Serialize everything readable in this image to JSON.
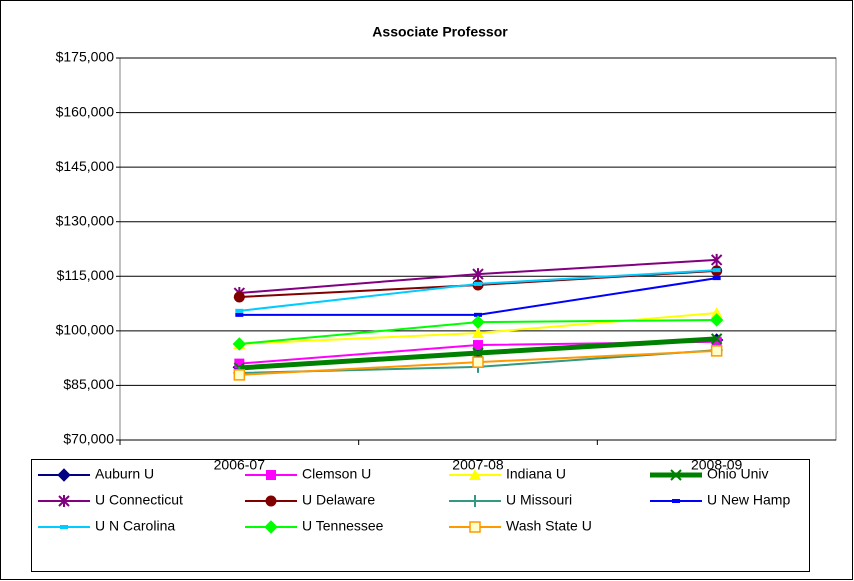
{
  "chart_data": {
    "type": "line",
    "title": "Associate Professor",
    "categories": [
      "2006-07",
      "2007-08",
      "2008-09"
    ],
    "ylim": [
      70000,
      175000
    ],
    "yticks": [
      {
        "value": 70000,
        "label": "$70,000"
      },
      {
        "value": 85000,
        "label": "$85,000"
      },
      {
        "value": 100000,
        "label": "$100,000"
      },
      {
        "value": 115000,
        "label": "$115,000"
      },
      {
        "value": 130000,
        "label": "$130,000"
      },
      {
        "value": 145000,
        "label": "$145,000"
      },
      {
        "value": 160000,
        "label": "$160,000"
      },
      {
        "value": 175000,
        "label": "$175,000"
      }
    ],
    "grid": true,
    "legend": "bottom",
    "series": [
      {
        "name": "Auburn U",
        "color": "#000080",
        "marker": "diamond",
        "values": [
          90000,
          94000,
          97500
        ]
      },
      {
        "name": "Clemson U",
        "color": "#ff00ff",
        "marker": "square",
        "values": [
          91000,
          96100,
          97000
        ]
      },
      {
        "name": "Indiana U",
        "color": "#ffff00",
        "marker": "triangle",
        "values": [
          96400,
          99400,
          104900
        ]
      },
      {
        "name": "Ohio Univ",
        "color": "#008000",
        "marker": "x",
        "width": 5,
        "values": [
          89800,
          93900,
          97800
        ]
      },
      {
        "name": "U Connecticut",
        "color": "#800080",
        "marker": "star",
        "values": [
          110400,
          115600,
          119500
        ]
      },
      {
        "name": "U Delaware",
        "color": "#800000",
        "marker": "circle",
        "values": [
          109300,
          112600,
          116500
        ]
      },
      {
        "name": "U Missouri",
        "color": "#339980",
        "marker": "plus",
        "values": [
          88400,
          90100,
          94700
        ]
      },
      {
        "name": "U New Hamp",
        "color": "#0000ff",
        "marker": "dash",
        "values": [
          104400,
          104400,
          114500
        ]
      },
      {
        "name": "U N Carolina",
        "color": "#00ccff",
        "marker": "dash",
        "values": [
          105500,
          112900,
          116700
        ]
      },
      {
        "name": "U Tennessee",
        "color": "#00ff00",
        "marker": "diamond",
        "values": [
          96400,
          102400,
          103000
        ]
      },
      {
        "name": "Wash State U",
        "color": "#ff9900",
        "marker": "opensquare",
        "values": [
          87900,
          91400,
          94500
        ]
      }
    ]
  }
}
